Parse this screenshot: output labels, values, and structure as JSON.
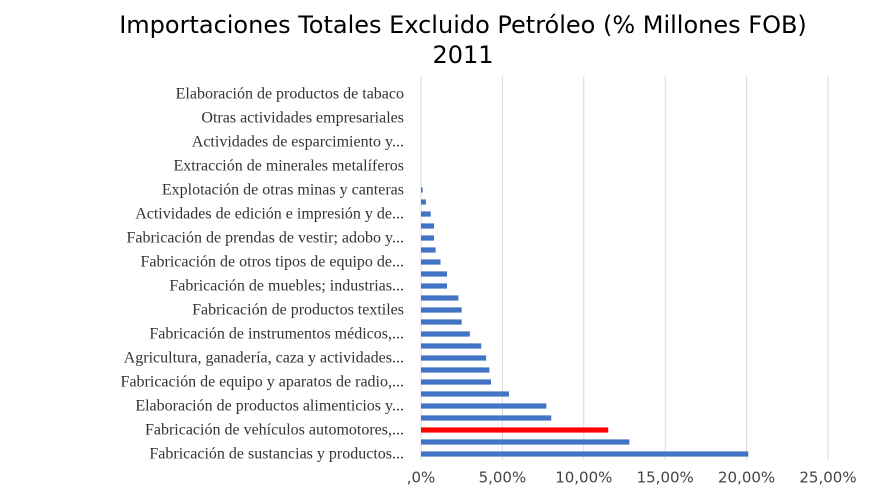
{
  "chart_data": {
    "type": "barh",
    "title": "Importaciones Totales Excluido Petróleo (% Millones FOB) 2011",
    "categories": [
      "Fabricación de sustancias y productos...",
      null,
      "Fabricación de vehículos automotores,...",
      null,
      "Elaboración de productos alimenticios y...",
      null,
      "Fabricación de equipo y aparatos de radio,...",
      null,
      "Agricultura, ganadería, caza y actividades...",
      null,
      "Fabricación de instrumentos médicos,...",
      null,
      "Fabricación de productos textiles",
      null,
      "Fabricación de muebles; industrias...",
      null,
      "Fabricación de otros tipos de equipo de...",
      null,
      "Fabricación de prendas de vestir; adobo y...",
      null,
      "Actividades de edición e impresión y de...",
      null,
      "Explotación de otras minas y canteras",
      null,
      "Extracción de minerales metalíferos",
      null,
      "Actividades de esparcimiento y...",
      null,
      "Otras actividades empresariales",
      null,
      "Elaboración de productos de tabaco",
      null
    ],
    "values": [
      20.1,
      12.8,
      11.5,
      8.0,
      7.7,
      5.4,
      4.3,
      4.2,
      4.0,
      3.7,
      3.0,
      2.5,
      2.5,
      2.3,
      1.6,
      1.6,
      1.2,
      0.9,
      0.8,
      0.8,
      0.6,
      0.3,
      0.1,
      0,
      0,
      0,
      0,
      0,
      0,
      0,
      0,
      0
    ],
    "colors": [
      "#4472c4",
      "#4472c4",
      "#ff0000",
      "#4472c4",
      "#4472c4",
      "#4472c4",
      "#4472c4",
      "#4472c4",
      "#4472c4",
      "#4472c4",
      "#4472c4",
      "#4472c4",
      "#4472c4",
      "#4472c4",
      "#4472c4",
      "#4472c4",
      "#4472c4",
      "#4472c4",
      "#4472c4",
      "#4472c4",
      "#4472c4",
      "#4472c4",
      "#4472c4",
      "#4472c4",
      "#4472c4",
      "#4472c4",
      "#4472c4",
      "#4472c4",
      "#4472c4",
      "#4472c4",
      "#4472c4",
      "#4472c4"
    ],
    "xlim": [
      0,
      25
    ],
    "xticks": [
      {
        "value": 0,
        "label": ",0%"
      },
      {
        "value": 5,
        "label": "5,00%"
      },
      {
        "value": 10,
        "label": "10,00%"
      },
      {
        "value": 15,
        "label": "15,00%"
      },
      {
        "value": 20,
        "label": "20,00%"
      },
      {
        "value": 25,
        "label": "25,00%"
      }
    ],
    "grid": true
  }
}
